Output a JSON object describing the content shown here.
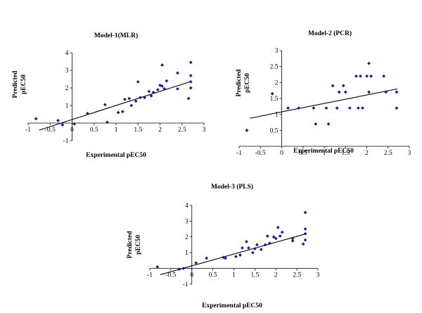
{
  "chart_data": [
    {
      "type": "scatter",
      "title": "Model-1(MLR)",
      "xlabel": "Experimental  pEC50",
      "ylabel": [
        "Predicted",
        "pEC50"
      ],
      "xlim": [
        -1,
        3
      ],
      "ylim": [
        -1,
        4
      ],
      "x_ticks": [
        "-1",
        "-0.5",
        "0",
        "0.5",
        "1",
        "1.5",
        "2",
        "2.5",
        "3"
      ],
      "y_ticks": [
        "-1",
        "1",
        "2",
        "3",
        "4"
      ],
      "marker_color": "#1a1a8c",
      "points": [
        [
          -0.82,
          0.25
        ],
        [
          -0.32,
          0.15
        ],
        [
          -0.22,
          -0.1
        ],
        [
          0.05,
          -0.05
        ],
        [
          0.35,
          0.55
        ],
        [
          0.75,
          1.05
        ],
        [
          0.8,
          0.05
        ],
        [
          1.05,
          0.6
        ],
        [
          1.15,
          0.65
        ],
        [
          1.2,
          1.35
        ],
        [
          1.3,
          1.4
        ],
        [
          1.35,
          1.0
        ],
        [
          1.45,
          1.25
        ],
        [
          1.5,
          2.35
        ],
        [
          1.55,
          1.45
        ],
        [
          1.65,
          1.45
        ],
        [
          1.75,
          1.8
        ],
        [
          1.8,
          1.55
        ],
        [
          1.85,
          1.75
        ],
        [
          1.95,
          1.9
        ],
        [
          2.0,
          2.15
        ],
        [
          2.05,
          2.1
        ],
        [
          2.05,
          3.3
        ],
        [
          2.1,
          1.95
        ],
        [
          2.15,
          2.4
        ],
        [
          2.4,
          1.95
        ],
        [
          2.4,
          2.85
        ],
        [
          2.65,
          1.4
        ],
        [
          2.7,
          2.0
        ],
        [
          2.7,
          2.35
        ],
        [
          2.7,
          2.7
        ],
        [
          2.7,
          3.45
        ]
      ],
      "fit_line": {
        "x": [
          -0.75,
          2.72
        ],
        "y": [
          -0.4,
          2.38
        ]
      }
    },
    {
      "type": "scatter",
      "title": "Model-2 (PCR)",
      "xlabel": "Experimental pEC50",
      "ylabel": [
        "Predicted",
        "pEC50"
      ],
      "xlim": [
        -1,
        3
      ],
      "ylim": [
        0,
        3
      ],
      "x_ticks": [
        "-1",
        "-0.5",
        "0",
        "0.5",
        "1",
        "1.5",
        "2",
        "2.5",
        "3"
      ],
      "y_ticks": [
        "0.5",
        "1",
        "1.5",
        "2",
        "2.5",
        "3"
      ],
      "marker_color": "#1a1a8c",
      "points": [
        [
          -0.82,
          0.5
        ],
        [
          -0.22,
          1.65
        ],
        [
          0.15,
          1.2
        ],
        [
          0.4,
          1.2
        ],
        [
          0.75,
          1.2
        ],
        [
          0.8,
          0.7
        ],
        [
          1.05,
          1.2
        ],
        [
          1.1,
          0.7
        ],
        [
          1.2,
          1.9
        ],
        [
          1.3,
          1.2
        ],
        [
          1.35,
          1.7
        ],
        [
          1.45,
          1.9
        ],
        [
          1.5,
          1.7
        ],
        [
          1.6,
          1.2
        ],
        [
          1.75,
          2.2
        ],
        [
          1.8,
          1.2
        ],
        [
          1.85,
          2.2
        ],
        [
          1.9,
          1.2
        ],
        [
          2.0,
          2.2
        ],
        [
          2.05,
          1.7
        ],
        [
          2.05,
          2.6
        ],
        [
          2.1,
          2.2
        ],
        [
          2.4,
          2.2
        ],
        [
          2.45,
          1.7
        ],
        [
          2.7,
          1.2
        ],
        [
          2.7,
          1.7
        ]
      ],
      "fit_line": {
        "x": [
          -0.75,
          2.72
        ],
        "y": [
          0.88,
          1.8
        ]
      }
    },
    {
      "type": "scatter",
      "title": "Model-3 (PLS)",
      "xlabel": "Experimental pEC50",
      "ylabel": [
        "Predicted",
        "pEC50"
      ],
      "xlim": [
        -1,
        3
      ],
      "ylim": [
        -1,
        4
      ],
      "x_ticks": [
        "-1",
        "-0.5",
        "0",
        "0.5",
        "1",
        "1.5",
        "2",
        "2.5",
        "3"
      ],
      "y_ticks": [
        "-1",
        "1",
        "2",
        "3",
        "4"
      ],
      "marker_color": "#1a1a8c",
      "points": [
        [
          -0.82,
          0.1
        ],
        [
          -0.3,
          -0.05
        ],
        [
          -0.2,
          0.0
        ],
        [
          0.1,
          0.35
        ],
        [
          0.35,
          0.65
        ],
        [
          0.75,
          0.7
        ],
        [
          0.8,
          0.65
        ],
        [
          1.05,
          0.75
        ],
        [
          1.15,
          0.85
        ],
        [
          1.2,
          1.3
        ],
        [
          1.3,
          1.7
        ],
        [
          1.35,
          1.3
        ],
        [
          1.45,
          1.0
        ],
        [
          1.5,
          1.25
        ],
        [
          1.55,
          1.5
        ],
        [
          1.65,
          1.2
        ],
        [
          1.75,
          1.5
        ],
        [
          1.8,
          2.05
        ],
        [
          1.85,
          1.6
        ],
        [
          1.95,
          2.0
        ],
        [
          2.0,
          1.9
        ],
        [
          2.05,
          2.6
        ],
        [
          2.1,
          2.05
        ],
        [
          2.15,
          2.3
        ],
        [
          2.4,
          1.9
        ],
        [
          2.4,
          1.75
        ],
        [
          2.65,
          1.55
        ],
        [
          2.7,
          1.8
        ],
        [
          2.7,
          2.2
        ],
        [
          2.7,
          2.5
        ],
        [
          2.7,
          3.55
        ]
      ],
      "fit_line": {
        "x": [
          -0.75,
          2.72
        ],
        "y": [
          -0.4,
          2.2
        ]
      }
    }
  ]
}
